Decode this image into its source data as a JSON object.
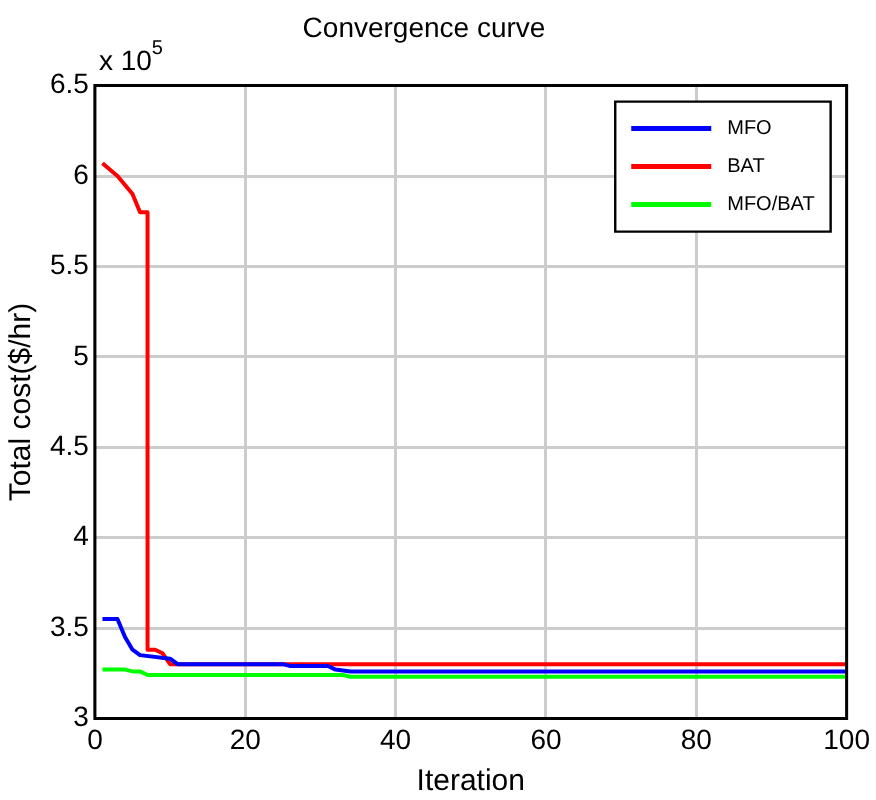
{
  "chart_data": {
    "type": "line",
    "title": "Convergence curve",
    "xlabel": "Iteration",
    "ylabel": "Total cost($/hr)",
    "annotations": [
      "x 10$^{5}$"
    ],
    "xlim": [
      0,
      100
    ],
    "xticks": [
      0,
      20,
      40,
      60,
      80,
      100
    ],
    "ylim": [
      3,
      6.5
    ],
    "yticks": [
      3,
      3.5,
      4,
      4.5,
      5,
      5.5,
      6,
      6.5
    ],
    "grid": true,
    "legend": "top right",
    "marker": "none",
    "line_style": "solid",
    "series": [
      {
        "name": "MFO",
        "color": "#0000ff",
        "x": [
          1,
          3,
          4,
          5,
          6,
          10,
          11,
          25,
          26,
          31,
          32,
          34,
          100
        ],
        "values": [
          3.55,
          3.55,
          3.45,
          3.38,
          3.35,
          3.33,
          3.3,
          3.3,
          3.29,
          3.29,
          3.27,
          3.26,
          3.26
        ]
      },
      {
        "name": "BAT",
        "color": "#ff0000",
        "x": [
          1,
          3,
          5,
          6,
          7,
          7,
          8,
          9,
          10,
          100
        ],
        "values": [
          6.07,
          6.0,
          5.9,
          5.8,
          5.8,
          3.38,
          3.38,
          3.36,
          3.3,
          3.3
        ]
      },
      {
        "name": "MFO/BAT",
        "color": "#00ff00",
        "x": [
          1,
          4,
          5,
          6,
          7,
          33,
          34,
          100
        ],
        "values": [
          3.27,
          3.27,
          3.26,
          3.26,
          3.24,
          3.24,
          3.23,
          3.23
        ]
      }
    ]
  }
}
